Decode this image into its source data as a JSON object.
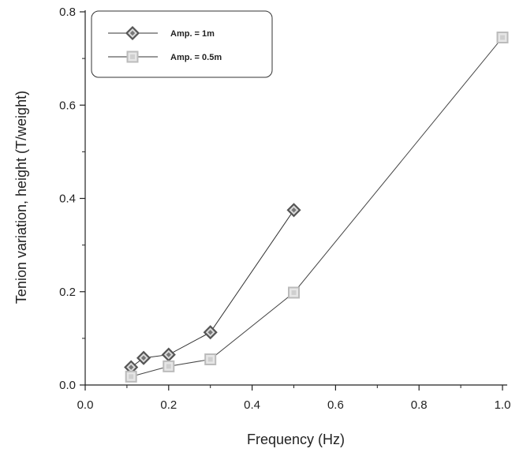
{
  "chart_data": {
    "type": "line",
    "title": "",
    "xlabel": "Frequency (Hz)",
    "ylabel": "Tenion variation, height (T/weight)",
    "xlim": [
      0.0,
      1.0
    ],
    "ylim": [
      0.0,
      0.8
    ],
    "xticks": [
      "0.0",
      "0.2",
      "0.4",
      "0.6",
      "0.8",
      "1.0"
    ],
    "yticks": [
      "0.0",
      "0.2",
      "0.4",
      "0.6",
      "0.8"
    ],
    "grid": false,
    "legend_position": "top-left",
    "series": [
      {
        "name": "Amp. = 1m",
        "marker": "diamond",
        "color": "#555555",
        "x": [
          0.11,
          0.14,
          0.2,
          0.3,
          0.5
        ],
        "y": [
          0.038,
          0.058,
          0.065,
          0.113,
          0.375
        ]
      },
      {
        "name": "Amp. = 0.5m",
        "marker": "square",
        "color": "#bbbbbb",
        "x": [
          0.11,
          0.2,
          0.3,
          0.5,
          1.0
        ],
        "y": [
          0.018,
          0.04,
          0.055,
          0.198,
          0.745
        ]
      }
    ]
  }
}
